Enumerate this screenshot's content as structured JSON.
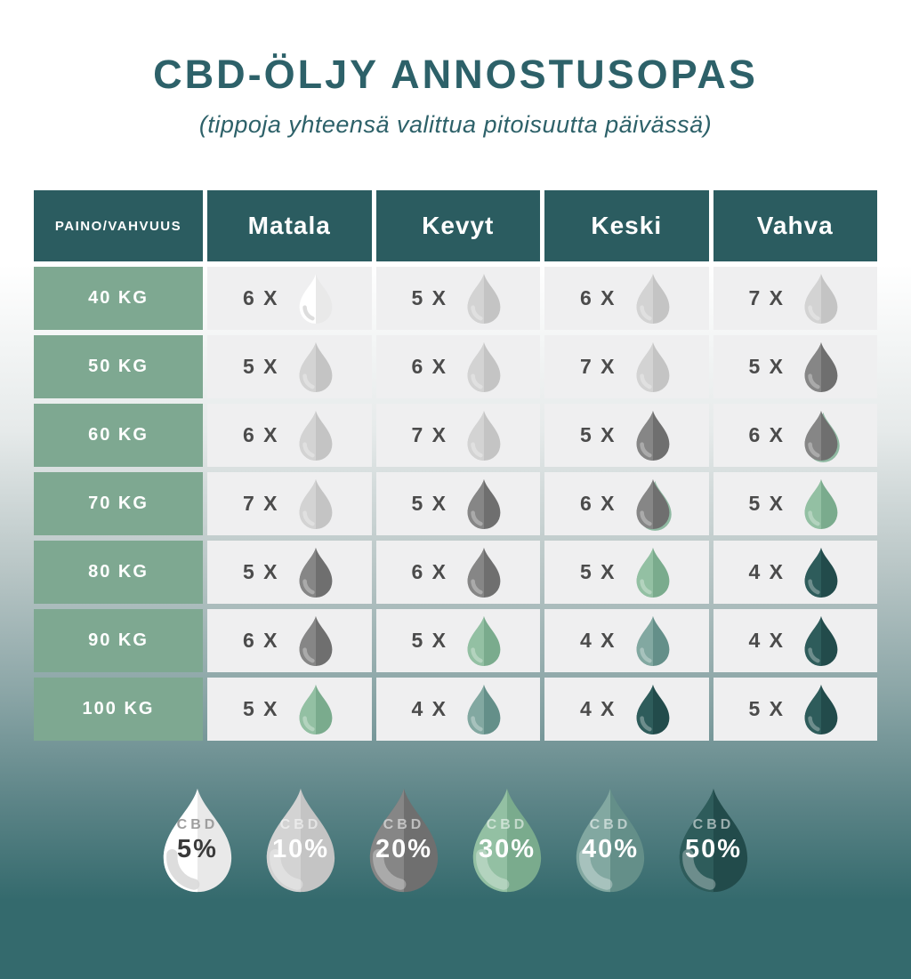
{
  "header": {
    "title": "CBD-ÖLJY ANNOSTUSOPAS",
    "subtitle": "(tippoja yhteensä valittua pitoisuutta päivässä)"
  },
  "colors": {
    "title_text": "#2d6169",
    "header_bg": "#2b5c60",
    "weight_label_bg": "#7ea891",
    "cell_bg": "#efeff0",
    "count_text": "#4b4b4b",
    "background_bottom": "#346a6d",
    "halo_green": "#8fb9a2",
    "legend_dark_text": "#3a3a3a",
    "legend_muted_label": "#9e9e9e"
  },
  "drop_palette": {
    "5": {
      "left": "#ffffff",
      "right": "#e9e9e9"
    },
    "10": {
      "left": "#d3d3d3",
      "right": "#c4c4c4"
    },
    "20": {
      "left": "#868686",
      "right": "#6f6f6f"
    },
    "30": {
      "left": "#93c0a3",
      "right": "#7aab8d"
    },
    "40": {
      "left": "#82a8a1",
      "right": "#648f89"
    },
    "50": {
      "left": "#2e5c5b",
      "right": "#224b4b"
    }
  },
  "chart_data": {
    "type": "table",
    "title": "CBD-ÖLJY ANNOSTUSOPAS",
    "subtitle": "(tippoja yhteensä valittua pitoisuutta päivässä)",
    "corner_header": "PAINO/VAHVUUS",
    "columns": [
      "Matala",
      "Kevyt",
      "Keski",
      "Vahva"
    ],
    "rows": [
      {
        "weight": "40 KG",
        "cells": [
          {
            "display": "6 X",
            "drops": 6,
            "cbd_pct": 5
          },
          {
            "display": "5 X",
            "drops": 5,
            "cbd_pct": 10
          },
          {
            "display": "6 X",
            "drops": 6,
            "cbd_pct": 10
          },
          {
            "display": "7 X",
            "drops": 7,
            "cbd_pct": 10
          }
        ]
      },
      {
        "weight": "50 KG",
        "cells": [
          {
            "display": "5 X",
            "drops": 5,
            "cbd_pct": 10
          },
          {
            "display": "6 X",
            "drops": 6,
            "cbd_pct": 10
          },
          {
            "display": "7 X",
            "drops": 7,
            "cbd_pct": 10
          },
          {
            "display": "5 X",
            "drops": 5,
            "cbd_pct": 20
          }
        ]
      },
      {
        "weight": "60 KG",
        "cells": [
          {
            "display": "6 X",
            "drops": 6,
            "cbd_pct": 10
          },
          {
            "display": "7 X",
            "drops": 7,
            "cbd_pct": 10
          },
          {
            "display": "5 X",
            "drops": 5,
            "cbd_pct": 20
          },
          {
            "display": "6 X",
            "drops": 6,
            "cbd_pct": 20,
            "halo": true
          }
        ]
      },
      {
        "weight": "70 KG",
        "cells": [
          {
            "display": "7 X",
            "drops": 7,
            "cbd_pct": 10
          },
          {
            "display": "5 X",
            "drops": 5,
            "cbd_pct": 20
          },
          {
            "display": "6 X",
            "drops": 6,
            "cbd_pct": 20,
            "halo": true
          },
          {
            "display": "5 X",
            "drops": 5,
            "cbd_pct": 30
          }
        ]
      },
      {
        "weight": "80 KG",
        "cells": [
          {
            "display": "5 X",
            "drops": 5,
            "cbd_pct": 20
          },
          {
            "display": "6 X",
            "drops": 6,
            "cbd_pct": 20
          },
          {
            "display": "5 X",
            "drops": 5,
            "cbd_pct": 30
          },
          {
            "display": "4 X",
            "drops": 4,
            "cbd_pct": 50
          }
        ]
      },
      {
        "weight": "90 KG",
        "cells": [
          {
            "display": "6 X",
            "drops": 6,
            "cbd_pct": 20
          },
          {
            "display": "5 X",
            "drops": 5,
            "cbd_pct": 30
          },
          {
            "display": "4 X",
            "drops": 4,
            "cbd_pct": 40
          },
          {
            "display": "4 X",
            "drops": 4,
            "cbd_pct": 50
          }
        ]
      },
      {
        "weight": "100 KG",
        "cells": [
          {
            "display": "5 X",
            "drops": 5,
            "cbd_pct": 30
          },
          {
            "display": "4 X",
            "drops": 4,
            "cbd_pct": 40
          },
          {
            "display": "4 X",
            "drops": 4,
            "cbd_pct": 50
          },
          {
            "display": "5 X",
            "drops": 5,
            "cbd_pct": 50
          }
        ]
      }
    ],
    "legend": {
      "label": "CBD",
      "items": [
        {
          "pct": "5%",
          "cbd_pct": 5
        },
        {
          "pct": "10%",
          "cbd_pct": 10
        },
        {
          "pct": "20%",
          "cbd_pct": 20
        },
        {
          "pct": "30%",
          "cbd_pct": 30
        },
        {
          "pct": "40%",
          "cbd_pct": 40
        },
        {
          "pct": "50%",
          "cbd_pct": 50
        }
      ]
    }
  }
}
